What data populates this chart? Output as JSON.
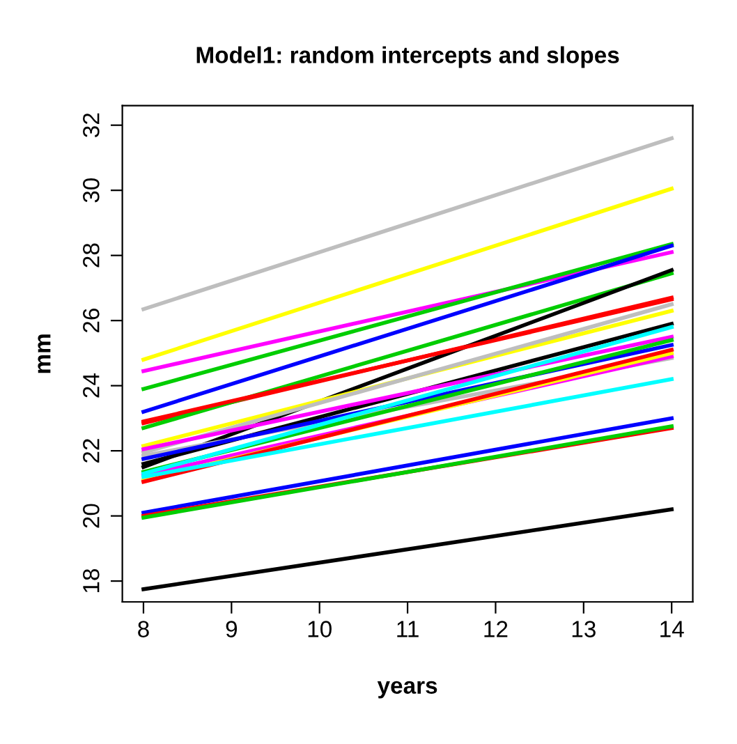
{
  "chart_data": {
    "type": "line",
    "title": "Model1: random intercepts and slopes",
    "xlabel": "years",
    "ylabel": "mm",
    "x": [
      8,
      14
    ],
    "xlim": [
      7.76,
      14.24
    ],
    "ylim": [
      17.36,
      32.6
    ],
    "xticks": [
      8,
      9,
      10,
      11,
      12,
      13,
      14
    ],
    "yticks": [
      18,
      20,
      22,
      24,
      26,
      28,
      30,
      32
    ],
    "grid": false,
    "legend": false,
    "marker": "none",
    "line_style": "solid",
    "series": [
      {
        "color": "#bebebe",
        "values": [
          26.35,
          31.6
        ]
      },
      {
        "color": "#ffff00",
        "values": [
          24.8,
          30.05
        ]
      },
      {
        "color": "#ff00ff",
        "values": [
          24.45,
          28.1
        ]
      },
      {
        "color": "#00cd00",
        "values": [
          23.9,
          28.35
        ]
      },
      {
        "color": "#0000ff",
        "values": [
          23.2,
          28.3
        ]
      },
      {
        "color": "#ff0000",
        "values": [
          22.85,
          26.7
        ]
      },
      {
        "color": "#00cd00",
        "values": [
          22.7,
          27.45
        ]
      },
      {
        "color": "#000000",
        "values": [
          21.5,
          27.55
        ]
      },
      {
        "color": "#000000",
        "values": [
          21.6,
          25.9
        ]
      },
      {
        "color": "#ff0000",
        "values": [
          22.9,
          26.65
        ]
      },
      {
        "color": "#ffff00",
        "values": [
          22.15,
          26.3
        ]
      },
      {
        "color": "#bebebe",
        "values": [
          21.95,
          26.5
        ]
      },
      {
        "color": "#ff00ff",
        "values": [
          22.05,
          25.5
        ]
      },
      {
        "color": "#bebebe",
        "values": [
          21.85,
          24.85
        ]
      },
      {
        "color": "#0000ff",
        "values": [
          21.75,
          25.25
        ]
      },
      {
        "color": "#00cd00",
        "values": [
          21.35,
          25.4
        ]
      },
      {
        "color": "#ff00ff",
        "values": [
          21.25,
          24.9
        ]
      },
      {
        "color": "#00ffff",
        "values": [
          21.3,
          25.8
        ]
      },
      {
        "color": "#ffff00",
        "values": [
          21.1,
          25.0
        ]
      },
      {
        "color": "#ff0000",
        "values": [
          21.05,
          25.1
        ]
      },
      {
        "color": "#00ffff",
        "values": [
          21.2,
          24.2
        ]
      },
      {
        "color": "#0000ff",
        "values": [
          20.1,
          23.0
        ]
      },
      {
        "color": "#ff0000",
        "values": [
          20.0,
          22.7
        ]
      },
      {
        "color": "#00cd00",
        "values": [
          19.95,
          22.75
        ]
      },
      {
        "color": "#000000",
        "values": [
          17.75,
          20.2
        ]
      }
    ]
  }
}
